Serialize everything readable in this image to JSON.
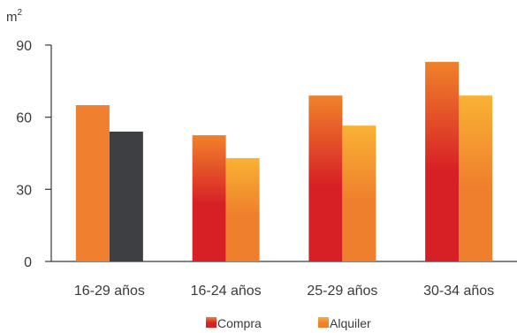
{
  "chart_data": {
    "type": "bar",
    "unit_label": "m",
    "unit_superscript": "2",
    "categories": [
      "16-29 años",
      "16-24 años",
      "25-29 años",
      "30-34 años"
    ],
    "series": [
      {
        "name": "Compra",
        "values": [
          65,
          52.5,
          69,
          83
        ]
      },
      {
        "name": "Alquiler",
        "values": [
          54,
          43,
          56.5,
          69
        ]
      }
    ],
    "ylim": [
      0,
      90
    ],
    "yticks": [
      0,
      30,
      60,
      90
    ],
    "grid": false,
    "legend_position": "bottom",
    "colors": {
      "compra_top": "#f0822a",
      "compra_bottom": "#d71f26",
      "alquiler_top": "#f9b234",
      "alquiler_bottom": "#ef7f2c",
      "highlight_compra": "#f08030",
      "highlight_alquiler": "#3d3f42",
      "axis": "#3a3a3a"
    }
  }
}
